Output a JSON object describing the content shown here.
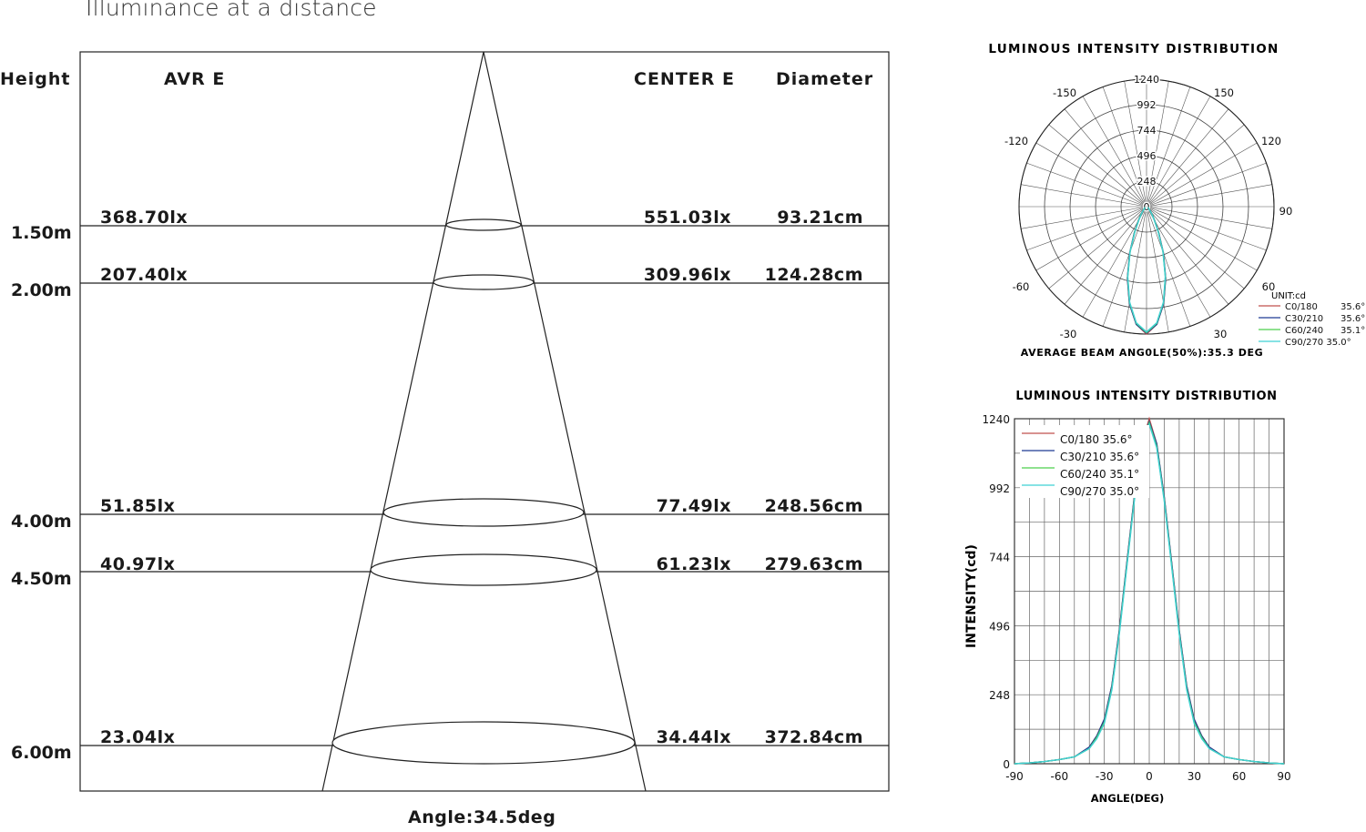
{
  "title": "Illuminance at a distance",
  "headers": {
    "height": "Height",
    "avr": "AVR E",
    "center": "CENTER E",
    "diameter": "Diameter"
  },
  "rows": [
    {
      "height": "1.50m",
      "avr": "368.70lx",
      "center": "551.03lx",
      "diameter": "93.21cm"
    },
    {
      "height": "2.00m",
      "avr": "207.40lx",
      "center": "309.96lx",
      "diameter": "124.28cm"
    },
    {
      "height": "4.00m",
      "avr": "51.85lx",
      "center": "77.49lx",
      "diameter": "248.56cm"
    },
    {
      "height": "4.50m",
      "avr": "40.97lx",
      "center": "61.23lx",
      "diameter": "279.63cm"
    },
    {
      "height": "6.00m",
      "avr": "23.04lx",
      "center": "34.44lx",
      "diameter": "372.84cm"
    }
  ],
  "angle_label": "Angle:34.5deg",
  "colors": {
    "c0": "#c0504d",
    "c30": "#1f3a93",
    "c60": "#4ccf4c",
    "c90": "#3fd0d4",
    "line": "#222222",
    "grid": "#555555"
  },
  "chart_data": [
    {
      "type": "table",
      "title": "Illuminance at a distance",
      "columns": [
        "Height",
        "AVR E",
        "CENTER E",
        "Diameter"
      ],
      "rows": [
        [
          "1.50m",
          "368.70lx",
          "551.03lx",
          "93.21cm"
        ],
        [
          "2.00m",
          "207.40lx",
          "309.96lx",
          "124.28cm"
        ],
        [
          "4.00m",
          "51.85lx",
          "77.49lx",
          "248.56cm"
        ],
        [
          "4.50m",
          "40.97lx",
          "61.23lx",
          "279.63cm"
        ],
        [
          "6.00m",
          "23.04lx",
          "34.44lx",
          "372.84cm"
        ]
      ],
      "beam_angle": "Angle:34.5deg"
    },
    {
      "type": "polar",
      "title": "LUMINOUS INTENSITY DISTRIBUTION",
      "unit": "UNIT:cd",
      "radial_ticks": [
        "0",
        "248",
        "496",
        "744",
        "992",
        "1240"
      ],
      "rmax": 1240,
      "angle_labels": [
        "-150",
        "150",
        "-120",
        "120",
        "90",
        "-60",
        "60",
        "-30",
        "30"
      ],
      "footer": "AVERAGE BEAM ANG0LE(50%):35.3 DEG",
      "legend": [
        {
          "name": "C0/180",
          "value": "35.6°"
        },
        {
          "name": "C30/210",
          "value": "35.6°"
        },
        {
          "name": "C60/240",
          "value": "35.1°"
        },
        {
          "name": "C90/270 35.0°",
          "value": ""
        }
      ]
    },
    {
      "type": "line",
      "title": "LUMINOUS INTENSITY DISTRIBUTION",
      "xlabel": "ANGLE(DEG)",
      "ylabel": "INTENSITY(cd)",
      "xlim": [
        -90,
        90
      ],
      "ylim": [
        0,
        1240
      ],
      "xticks": [
        "-90",
        "-60",
        "-30",
        "0",
        "30",
        "60",
        "90"
      ],
      "yticks": [
        "0",
        "248",
        "496",
        "744",
        "992",
        "1240"
      ],
      "x": [
        -90,
        -80,
        -70,
        -60,
        -50,
        -40,
        -35,
        -30,
        -25,
        -20,
        -15,
        -10,
        -5,
        0,
        5,
        10,
        15,
        20,
        25,
        30,
        35,
        40,
        50,
        60,
        70,
        80,
        90
      ],
      "series": [
        {
          "name": "C0/180 35.6°",
          "values": [
            0,
            3,
            8,
            15,
            25,
            60,
            100,
            160,
            280,
            480,
            720,
            960,
            1150,
            1240,
            1150,
            960,
            720,
            480,
            280,
            160,
            100,
            60,
            25,
            15,
            8,
            3,
            0
          ]
        },
        {
          "name": "C30/210 35.6°",
          "values": [
            0,
            3,
            8,
            15,
            25,
            60,
            100,
            160,
            280,
            480,
            720,
            960,
            1150,
            1230,
            1150,
            960,
            720,
            480,
            280,
            160,
            100,
            60,
            25,
            15,
            8,
            3,
            0
          ]
        },
        {
          "name": "C60/240 35.1°",
          "values": [
            0,
            3,
            8,
            15,
            25,
            55,
            95,
            150,
            270,
            470,
            710,
            950,
            1140,
            1225,
            1140,
            950,
            710,
            470,
            270,
            150,
            95,
            55,
            25,
            15,
            8,
            3,
            0
          ]
        },
        {
          "name": "C90/270 35.0°",
          "values": [
            0,
            3,
            8,
            15,
            25,
            55,
            90,
            145,
            265,
            465,
            705,
            945,
            1135,
            1220,
            1135,
            945,
            705,
            465,
            265,
            145,
            90,
            55,
            25,
            15,
            8,
            3,
            0
          ]
        }
      ]
    }
  ]
}
